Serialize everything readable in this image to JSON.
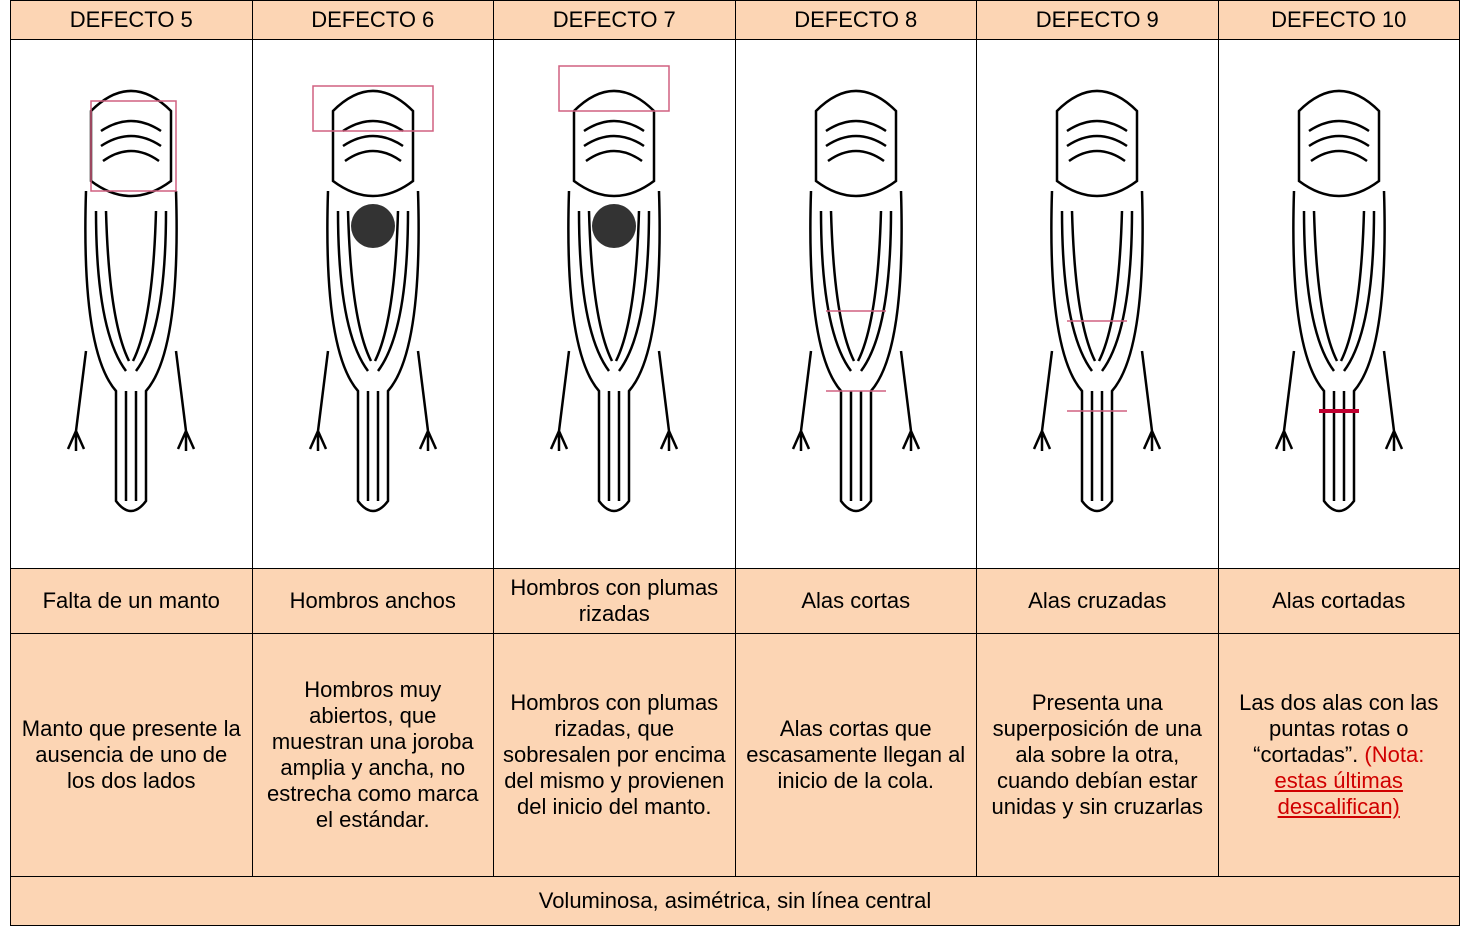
{
  "table": {
    "columns": [
      {
        "header": "DEFECTO 5",
        "name": "Falta de un manto",
        "description": "Manto que presente la ausencia de uno de los dos lados"
      },
      {
        "header": "DEFECTO 6",
        "name": "Hombros anchos",
        "description": "Hombros muy abiertos, que muestran una joroba amplia y ancha, no estrecha como marca el estándar."
      },
      {
        "header": "DEFECTO 7",
        "name": "Hombros con plumas rizadas",
        "description": "Hombros con plumas rizadas, que sobresalen por encima del mismo y provienen del inicio del manto."
      },
      {
        "header": "DEFECTO 8",
        "name": "Alas cortas",
        "description": "Alas cortas que escasamente llegan al inicio de la cola."
      },
      {
        "header": "DEFECTO 9",
        "name": "Alas cruzadas",
        "description": "Presenta una superposición de una ala sobre la otra, cuando debían estar unidas y sin cruzarlas"
      },
      {
        "header": "DEFECTO 10",
        "name": "Alas cortadas",
        "description": "Las dos alas con las puntas rotas o “cortadas”.",
        "note_prefix": "(Nota:",
        "note": "estas últimas descalifican)"
      }
    ],
    "footer": "Voluminosa, asimétrica, sin línea central"
  }
}
